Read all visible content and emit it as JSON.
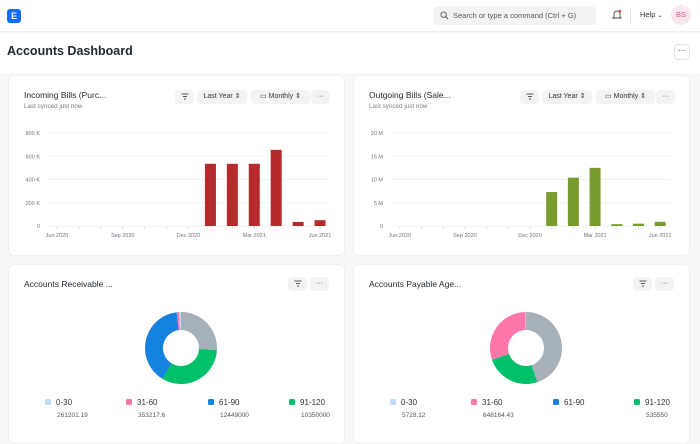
{
  "topbar": {
    "logo": "E",
    "search_placeholder": "Search or type a command (Ctrl + G)",
    "help": "Help",
    "avatar": "BS"
  },
  "page": {
    "title": "Accounts Dashboard",
    "more": "···"
  },
  "cards": [
    {
      "title": "Incoming Bills (Purc...",
      "subtitle": "Last synced just now",
      "range": "Last Year",
      "interval": "Monthly",
      "more": "···"
    },
    {
      "title": "Outgoing Bills (Sale...",
      "subtitle": "Last synced just now",
      "range": "Last Year",
      "interval": "Monthly",
      "more": "···"
    },
    {
      "title": "Accounts Receivable ...",
      "more": "···"
    },
    {
      "title": "Accounts Payable Age...",
      "more": "···"
    }
  ],
  "chart_data": [
    {
      "type": "bar",
      "color": "#b52a2a",
      "x_labels": [
        "Jun 2020",
        "Sep 2020",
        "Dec 2020",
        "Mar 2021",
        "Jun 2021"
      ],
      "categories": [
        "Jun 2020",
        "Jul 2020",
        "Aug 2020",
        "Sep 2020",
        "Oct 2020",
        "Nov 2020",
        "Dec 2020",
        "Jan 2021",
        "Feb 2021",
        "Mar 2021",
        "Apr 2021",
        "May 2021",
        "Jun 2021"
      ],
      "values": [
        0,
        0,
        0,
        0,
        0,
        0,
        0,
        535000,
        535000,
        535000,
        655000,
        35000,
        50000
      ],
      "y_ticks": [
        "0",
        "200 K",
        "400 K",
        "600 K",
        "800 K"
      ],
      "ylim": [
        0,
        800000
      ],
      "grid": true
    },
    {
      "type": "bar",
      "color": "#7a9c2e",
      "x_labels": [
        "Jun 2020",
        "Sep 2020",
        "Dec 2020",
        "Mar 2021",
        "Jun 2021"
      ],
      "categories": [
        "Jun 2020",
        "Jul 2020",
        "Aug 2020",
        "Sep 2020",
        "Oct 2020",
        "Nov 2020",
        "Dec 2020",
        "Jan 2021",
        "Feb 2021",
        "Mar 2021",
        "Apr 2021",
        "May 2021",
        "Jun 2021"
      ],
      "values": [
        0,
        0,
        0,
        0,
        0,
        0,
        0,
        7300000,
        10400000,
        12500000,
        400000,
        500000,
        900000
      ],
      "y_ticks": [
        "0",
        "5 M",
        "10 M",
        "15 M",
        "20 M"
      ],
      "ylim": [
        0,
        20000000
      ],
      "grid": true
    },
    {
      "type": "pie",
      "donut": true,
      "slices": [
        {
          "name": "0-30",
          "value": "261201.19",
          "color": "#bcdcf7"
        },
        {
          "name": "31-60",
          "value": "353217.6",
          "color": "#ff77a9"
        },
        {
          "name": "61-90",
          "value": "12449000",
          "color": "#1582e0"
        },
        {
          "name": "91-120",
          "value": "10350000",
          "color": "#00c16a"
        },
        {
          "value": 8200000,
          "color": "#a5b0b8"
        }
      ]
    },
    {
      "type": "pie",
      "donut": true,
      "slices": [
        {
          "name": "0-30",
          "value": "5728.12",
          "color": "#bcdcf7"
        },
        {
          "name": "31-60",
          "value": "648164.43",
          "color": "#ff77a9"
        },
        {
          "name": "61-90",
          "value": "",
          "color": "#1582e0"
        },
        {
          "name": "91-120",
          "value": "535550",
          "color": "#00c16a"
        },
        {
          "value": 970000,
          "color": "#a5b0b8"
        }
      ]
    }
  ]
}
